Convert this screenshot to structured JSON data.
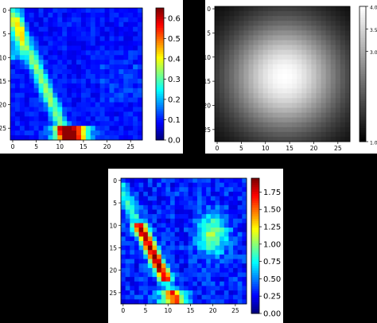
{
  "chart_data": [
    {
      "type": "heatmap",
      "id": "a",
      "grid_size": 28,
      "colormap": "jet",
      "x_ticks": [
        0,
        5,
        10,
        15,
        20,
        25
      ],
      "y_ticks": [
        0,
        5,
        10,
        15,
        20,
        25
      ],
      "colorbar": {
        "vmin": 0.0,
        "vmax": 0.65,
        "ticks": [
          "0.0",
          "0.1",
          "0.2",
          "0.3",
          "0.4",
          "0.5",
          "0.6"
        ]
      },
      "description_values": {
        "background_level": 0.08,
        "ridge_peak": 0.35,
        "bottom_hotspot_peak": 0.63
      }
    },
    {
      "type": "heatmap",
      "id": "b",
      "grid_size": 28,
      "colormap": "gray",
      "x_ticks": [
        0,
        5,
        10,
        15,
        20,
        25
      ],
      "y_ticks": [
        0,
        5,
        10,
        15,
        20,
        25
      ],
      "colorbar": {
        "vmin": 1.0,
        "vmax": 4.0,
        "ticks": [
          "1.00",
          "3.00",
          "3.50",
          "4.00"
        ]
      },
      "description_values": {
        "center_row": 14,
        "center_col": 14
      }
    },
    {
      "type": "heatmap",
      "id": "c",
      "grid_size": 28,
      "colormap": "jet",
      "x_ticks": [
        0,
        5,
        10,
        15,
        20,
        25
      ],
      "y_ticks": [
        0,
        5,
        10,
        15,
        20,
        25
      ],
      "colorbar": {
        "vmin": 0.0,
        "vmax": 1.95,
        "ticks": [
          "0.00",
          "0.25",
          "0.50",
          "0.75",
          "1.00",
          "1.25",
          "1.50",
          "1.75"
        ]
      },
      "description_values": {
        "background_level": 0.2,
        "ridge_peak": 1.9,
        "right_blob_peak": 1.0
      }
    }
  ]
}
